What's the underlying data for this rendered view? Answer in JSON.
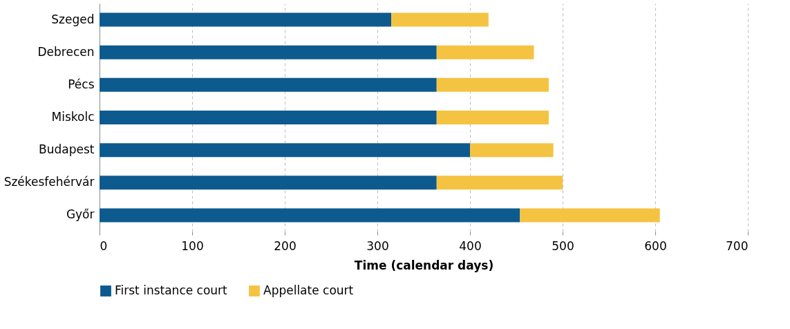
{
  "chart_data": {
    "type": "bar",
    "orientation": "horizontal",
    "stacked": true,
    "categories": [
      "Szeged",
      "Debrecen",
      "Pécs",
      "Miskolc",
      "Budapest",
      "Székesfehérvár",
      "Győr"
    ],
    "series": [
      {
        "name": "First instance court",
        "color": "#0d5a8f",
        "values": [
          315,
          364,
          364,
          364,
          400,
          364,
          454
        ]
      },
      {
        "name": "Appellate court",
        "color": "#f5c342",
        "values": [
          105,
          105,
          121,
          121,
          90,
          136,
          151
        ]
      }
    ],
    "xlabel": "Time (calendar days)",
    "xlim": [
      0,
      700
    ],
    "xticks": [
      0,
      100,
      200,
      300,
      400,
      500,
      600,
      700
    ],
    "grid": "x",
    "legend": "bottom"
  }
}
